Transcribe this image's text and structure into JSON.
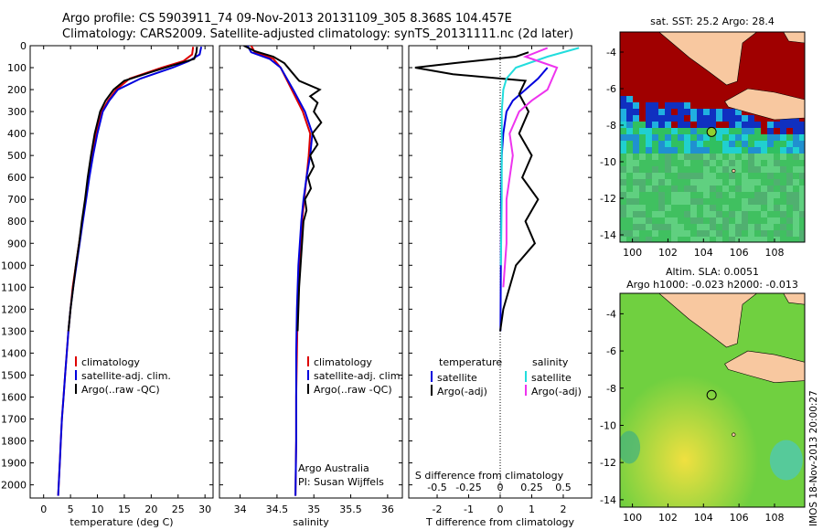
{
  "header": {
    "title_line1": "Argo profile: CS 5903911_74 09-Nov-2013 20131109_305 8.368S 104.457E",
    "title_line2": "Climatology: CARS2009. Satellite-adjusted climatology: synTS_20131111.nc (2d later)"
  },
  "depth_axis": {
    "ticks": [
      0,
      100,
      200,
      300,
      400,
      500,
      600,
      700,
      800,
      900,
      1000,
      1100,
      1200,
      1300,
      1400,
      1500,
      1600,
      1700,
      1800,
      1900,
      2000
    ],
    "ylim": [
      0,
      2060
    ]
  },
  "colors": {
    "climatology": "#dd0000",
    "satellite": "#0000dd",
    "argo": "#000000",
    "salinity_sat": "#22dddd",
    "salinity_argo": "#ee33ee",
    "land": "#f8c8a0"
  },
  "chart_data": [
    {
      "type": "line",
      "xlabel": "temperature (deg C)",
      "xticks": [
        0,
        5,
        10,
        15,
        20,
        25,
        30
      ],
      "xlim": [
        -2.5,
        31.5
      ],
      "legend": {
        "items": [
          "climatology",
          "satellite-adj. clim.",
          "Argo(..raw -QC)"
        ]
      },
      "series": [
        {
          "name": "climatology",
          "color": "#dd0000",
          "points": [
            [
              27.8,
              5
            ],
            [
              27.6,
              40
            ],
            [
              26,
              70
            ],
            [
              22,
              100
            ],
            [
              16,
              150
            ],
            [
              13.5,
              200
            ],
            [
              12,
              250
            ],
            [
              10.8,
              300
            ],
            [
              9.8,
              400
            ],
            [
              9,
              500
            ],
            [
              8.4,
              600
            ],
            [
              7.8,
              700
            ],
            [
              7.2,
              800
            ],
            [
              6.6,
              900
            ],
            [
              6,
              1000
            ],
            [
              5.4,
              1100
            ],
            [
              5,
              1200
            ],
            [
              4.6,
              1300
            ],
            [
              4.3,
              1400
            ],
            [
              4,
              1500
            ],
            [
              3.7,
              1600
            ],
            [
              3.4,
              1700
            ],
            [
              3.2,
              1800
            ],
            [
              3,
              1900
            ],
            [
              2.8,
              2000
            ],
            [
              2.7,
              2050
            ]
          ]
        },
        {
          "name": "satellite-adj. clim.",
          "color": "#0000dd",
          "points": [
            [
              29.3,
              5
            ],
            [
              29,
              40
            ],
            [
              27,
              70
            ],
            [
              24,
              100
            ],
            [
              18,
              150
            ],
            [
              13.8,
              200
            ],
            [
              12.2,
              250
            ],
            [
              11,
              300
            ],
            [
              10,
              400
            ],
            [
              9.2,
              500
            ],
            [
              8.5,
              600
            ],
            [
              7.9,
              700
            ],
            [
              7.3,
              800
            ],
            [
              6.7,
              900
            ],
            [
              6.1,
              1000
            ],
            [
              5.5,
              1100
            ],
            [
              5,
              1200
            ],
            [
              4.6,
              1300
            ],
            [
              4.3,
              1400
            ],
            [
              4,
              1500
            ],
            [
              3.7,
              1600
            ],
            [
              3.4,
              1700
            ],
            [
              3.2,
              1800
            ],
            [
              3,
              1900
            ],
            [
              2.8,
              2000
            ],
            [
              2.7,
              2050
            ]
          ]
        },
        {
          "name": "Argo(..raw -QC)",
          "color": "#000000",
          "points": [
            [
              28.5,
              5
            ],
            [
              28.4,
              30
            ],
            [
              28,
              60
            ],
            [
              24,
              90
            ],
            [
              20,
              120
            ],
            [
              15,
              160
            ],
            [
              13,
              200
            ],
            [
              11.5,
              250
            ],
            [
              10.5,
              300
            ],
            [
              9.5,
              400
            ],
            [
              8.8,
              500
            ],
            [
              8.2,
              600
            ],
            [
              7.7,
              700
            ],
            [
              7.1,
              800
            ],
            [
              6.6,
              900
            ],
            [
              6,
              1000
            ],
            [
              5.5,
              1100
            ],
            [
              5,
              1200
            ],
            [
              4.6,
              1300
            ]
          ]
        }
      ]
    },
    {
      "type": "line",
      "xlabel": "salinity",
      "xticks": [
        34,
        34.5,
        35,
        35.5,
        36
      ],
      "xticklabels": [
        "34",
        "34.5",
        "35",
        "35.5",
        "36"
      ],
      "xlim": [
        33.72,
        36.2
      ],
      "legend": {
        "items": [
          "climatology",
          "satellite-adj. clim.",
          "Argo(..raw -QC)"
        ]
      },
      "annotation": [
        "Argo Australia",
        "PI: Susan Wijffels"
      ],
      "series": [
        {
          "name": "climatology",
          "color": "#dd0000",
          "points": [
            [
              34.15,
              0
            ],
            [
              34.2,
              30
            ],
            [
              34.45,
              60
            ],
            [
              34.55,
              100
            ],
            [
              34.7,
              200
            ],
            [
              34.85,
              300
            ],
            [
              34.95,
              400
            ],
            [
              34.93,
              500
            ],
            [
              34.9,
              600
            ],
            [
              34.87,
              700
            ],
            [
              34.84,
              800
            ],
            [
              34.82,
              900
            ],
            [
              34.8,
              1000
            ],
            [
              34.79,
              1100
            ],
            [
              34.78,
              1200
            ],
            [
              34.77,
              1400
            ],
            [
              34.76,
              1600
            ],
            [
              34.76,
              1800
            ],
            [
              34.75,
              2050
            ]
          ]
        },
        {
          "name": "satellite-adj. clim.",
          "color": "#0000dd",
          "points": [
            [
              34.1,
              0
            ],
            [
              34.15,
              30
            ],
            [
              34.4,
              60
            ],
            [
              34.55,
              100
            ],
            [
              34.72,
              200
            ],
            [
              34.88,
              300
            ],
            [
              34.98,
              400
            ],
            [
              34.95,
              500
            ],
            [
              34.9,
              600
            ],
            [
              34.86,
              700
            ],
            [
              34.83,
              800
            ],
            [
              34.81,
              900
            ],
            [
              34.79,
              1000
            ],
            [
              34.78,
              1100
            ],
            [
              34.77,
              1200
            ],
            [
              34.76,
              1400
            ],
            [
              34.76,
              1600
            ],
            [
              34.76,
              1800
            ],
            [
              34.75,
              2050
            ]
          ]
        },
        {
          "name": "Argo(..raw -QC)",
          "color": "#000000",
          "points": [
            [
              34.05,
              0
            ],
            [
              34.2,
              25
            ],
            [
              34.45,
              50
            ],
            [
              34.6,
              80
            ],
            [
              34.7,
              120
            ],
            [
              34.8,
              160
            ],
            [
              35.08,
              200
            ],
            [
              34.95,
              230
            ],
            [
              35.05,
              260
            ],
            [
              35.0,
              300
            ],
            [
              35.1,
              350
            ],
            [
              34.98,
              400
            ],
            [
              35.05,
              450
            ],
            [
              34.95,
              500
            ],
            [
              35.0,
              550
            ],
            [
              34.92,
              600
            ],
            [
              34.96,
              650
            ],
            [
              34.88,
              700
            ],
            [
              34.9,
              750
            ],
            [
              34.86,
              800
            ],
            [
              34.84,
              900
            ],
            [
              34.82,
              1000
            ],
            [
              34.8,
              1100
            ],
            [
              34.79,
              1200
            ],
            [
              34.78,
              1300
            ]
          ]
        }
      ]
    },
    {
      "type": "line",
      "xlabel": "T difference from climatology",
      "xticks": [
        -2,
        -1,
        0,
        1,
        2
      ],
      "xlim": [
        -2.9,
        2.9
      ],
      "top_axis": {
        "label": "S difference from climatology",
        "ticks": [
          "-0.5",
          "-0.25",
          "0",
          "0.25",
          "0.5"
        ]
      },
      "legend": {
        "temperature_title": "temperature",
        "salinity_title": "salinity",
        "items": [
          "satellite",
          "Argo(-adj)",
          "satellite",
          "Argo(-adj)"
        ]
      },
      "series": [
        {
          "name": "satellite",
          "group": "temperature",
          "color": "#0000dd",
          "points": [
            [
              1.5,
              100
            ],
            [
              1.2,
              150
            ],
            [
              0.8,
              200
            ],
            [
              0.4,
              250
            ],
            [
              0.2,
              300
            ],
            [
              0.1,
              400
            ],
            [
              0.05,
              500
            ],
            [
              0.03,
              700
            ],
            [
              0.02,
              1000
            ],
            [
              0.01,
              1300
            ]
          ]
        },
        {
          "name": "Argo(-adj)",
          "group": "temperature",
          "color": "#000000",
          "points": [
            [
              0.9,
              30
            ],
            [
              0.5,
              50
            ],
            [
              -1.5,
              80
            ],
            [
              -2.7,
              100
            ],
            [
              -1.5,
              130
            ],
            [
              0.8,
              160
            ],
            [
              0.6,
              220
            ],
            [
              0.9,
              300
            ],
            [
              0.6,
              400
            ],
            [
              1,
              500
            ],
            [
              0.7,
              600
            ],
            [
              1.2,
              700
            ],
            [
              0.8,
              800
            ],
            [
              1.1,
              900
            ],
            [
              0.5,
              1000
            ],
            [
              0.3,
              1100
            ],
            [
              0.1,
              1200
            ],
            [
              0,
              1300
            ]
          ]
        },
        {
          "name": "satellite",
          "group": "salinity",
          "color": "#22dddd",
          "points": [
            [
              2.5,
              10
            ],
            [
              1.5,
              50
            ],
            [
              0.5,
              100
            ],
            [
              0.2,
              150
            ],
            [
              0.1,
              200
            ],
            [
              0.05,
              300
            ],
            [
              0.05,
              500
            ],
            [
              0.05,
              700
            ],
            [
              0.02,
              1000
            ]
          ]
        },
        {
          "name": "Argo(-adj)",
          "group": "salinity",
          "color": "#ee33ee",
          "points": [
            [
              1.5,
              10
            ],
            [
              0.8,
              50
            ],
            [
              1.8,
              100
            ],
            [
              1.5,
              200
            ],
            [
              1,
              250
            ],
            [
              0.6,
              300
            ],
            [
              0.3,
              400
            ],
            [
              0.4,
              500
            ],
            [
              0.2,
              700
            ],
            [
              0.2,
              900
            ],
            [
              0.1,
              1100
            ]
          ]
        }
      ]
    },
    {
      "type": "heatmap",
      "title": "sat. SST: 25.2  Argo: 28.4",
      "xticks": [
        100,
        102,
        104,
        106,
        108
      ],
      "yticks": [
        -4,
        -6,
        -8,
        -10,
        -12,
        -14
      ],
      "xlim": [
        99.3,
        109.7
      ],
      "ylim": [
        -14.4,
        -2.9
      ],
      "marker": {
        "lon": 104.457,
        "lat": -8.368
      }
    },
    {
      "type": "heatmap",
      "title": [
        "Altim. SLA: 0.0051",
        "Argo h1000: -0.023 h2000: -0.013"
      ],
      "xticks": [
        100,
        102,
        104,
        106,
        108
      ],
      "yticks": [
        -4,
        -6,
        -8,
        -10,
        -12,
        -14
      ],
      "xlim": [
        99.3,
        109.7
      ],
      "ylim": [
        -14.4,
        -2.9
      ],
      "marker": {
        "lon": 104.457,
        "lat": -8.368
      }
    }
  ],
  "footer": {
    "imos_stamp": "IMOS 18-Nov-2013 20:00:27"
  }
}
